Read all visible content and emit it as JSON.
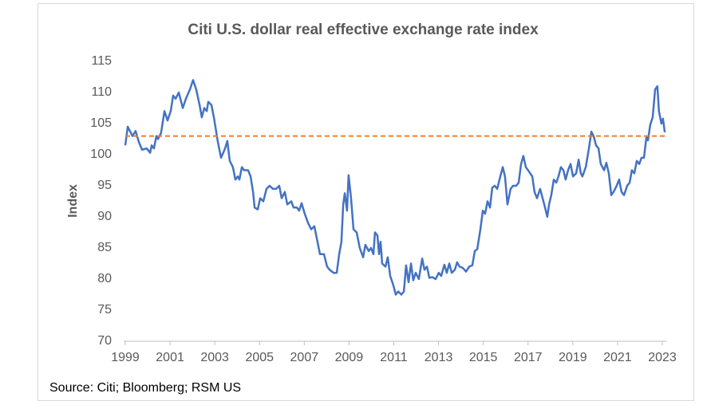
{
  "chart_data": {
    "type": "line",
    "title": "Citi U.S. dollar real effective exchange rate index",
    "y_label": "Index",
    "source": "Source: Citi; Bloomberg; RSM US",
    "color": "#4472c4",
    "reference_line": {
      "value": 103,
      "color": "#ed7d31"
    },
    "xlim": [
      1999,
      2023.2
    ],
    "xticks": [
      1999,
      2001,
      2003,
      2005,
      2007,
      2009,
      2011,
      2013,
      2015,
      2017,
      2019,
      2021,
      2023
    ],
    "ylim": [
      70,
      115
    ],
    "yticks": [
      70,
      75,
      80,
      85,
      90,
      95,
      100,
      105,
      110,
      115
    ],
    "grid": false,
    "x": [
      1999.0,
      1999.11,
      1999.32,
      1999.46,
      1999.61,
      1999.75,
      1999.96,
      2000.11,
      2000.18,
      2000.28,
      2000.39,
      2000.46,
      2000.6,
      2000.75,
      2000.89,
      2001.03,
      2001.14,
      2001.25,
      2001.39,
      2001.57,
      2001.71,
      2001.89,
      2002.03,
      2002.17,
      2002.32,
      2002.42,
      2002.53,
      2002.64,
      2002.71,
      2002.85,
      2002.96,
      2003.14,
      2003.28,
      2003.46,
      2003.56,
      2003.67,
      2003.81,
      2003.92,
      2004.03,
      2004.1,
      2004.21,
      2004.31,
      2004.49,
      2004.6,
      2004.71,
      2004.78,
      2004.92,
      2005.03,
      2005.17,
      2005.31,
      2005.45,
      2005.6,
      2005.74,
      2005.88,
      2005.99,
      2006.13,
      2006.24,
      2006.42,
      2006.52,
      2006.67,
      2006.77,
      2006.88,
      2007.02,
      2007.17,
      2007.31,
      2007.45,
      2007.59,
      2007.7,
      2007.88,
      2008.02,
      2008.13,
      2008.31,
      2008.45,
      2008.56,
      2008.66,
      2008.74,
      2008.81,
      2008.91,
      2008.98,
      2009.09,
      2009.2,
      2009.34,
      2009.48,
      2009.63,
      2009.73,
      2009.88,
      2009.98,
      2010.09,
      2010.16,
      2010.27,
      2010.34,
      2010.41,
      2010.48,
      2010.63,
      2010.73,
      2010.84,
      2010.98,
      2011.09,
      2011.2,
      2011.34,
      2011.45,
      2011.55,
      2011.66,
      2011.77,
      2011.87,
      2011.98,
      2012.12,
      2012.27,
      2012.37,
      2012.48,
      2012.59,
      2012.73,
      2012.87,
      2013.01,
      2013.12,
      2013.26,
      2013.37,
      2013.48,
      2013.59,
      2013.73,
      2013.83,
      2013.94,
      2014.08,
      2014.23,
      2014.37,
      2014.51,
      2014.62,
      2014.73,
      2014.87,
      2014.98,
      2015.08,
      2015.19,
      2015.3,
      2015.4,
      2015.51,
      2015.62,
      2015.76,
      2015.87,
      2015.97,
      2016.08,
      2016.22,
      2016.33,
      2016.47,
      2016.58,
      2016.69,
      2016.79,
      2016.9,
      2017.04,
      2017.19,
      2017.29,
      2017.4,
      2017.54,
      2017.65,
      2017.76,
      2017.86,
      2017.94,
      2018.04,
      2018.15,
      2018.26,
      2018.36,
      2018.47,
      2018.58,
      2018.68,
      2018.79,
      2018.9,
      2019.01,
      2019.15,
      2019.26,
      2019.36,
      2019.43,
      2019.58,
      2019.72,
      2019.83,
      2019.93,
      2020.04,
      2020.15,
      2020.25,
      2020.4,
      2020.5,
      2020.61,
      2020.72,
      2020.82,
      2020.96,
      2021.07,
      2021.18,
      2021.29,
      2021.43,
      2021.54,
      2021.64,
      2021.75,
      2021.86,
      2021.97,
      2022.07,
      2022.18,
      2022.29,
      2022.36,
      2022.46,
      2022.57,
      2022.68,
      2022.78,
      2022.85,
      2022.96,
      2023.03,
      2023.11
    ],
    "values": [
      101.5,
      104.5,
      103,
      103.8,
      102,
      100.8,
      101,
      100.3,
      101.5,
      101,
      103,
      102.5,
      103.5,
      107,
      105.5,
      107,
      109.5,
      109,
      110,
      107.5,
      109,
      110.5,
      112,
      110.5,
      108,
      106,
      107.5,
      107,
      108.5,
      108,
      106,
      102,
      99.5,
      101,
      102.2,
      99,
      98,
      96,
      96.5,
      96,
      98,
      97.5,
      97.5,
      96.5,
      94,
      91.5,
      91.2,
      93,
      92.5,
      94.5,
      95,
      94.5,
      94.5,
      95,
      93,
      94,
      92,
      92.5,
      91.5,
      91.5,
      91,
      92.2,
      90.5,
      89,
      88,
      88.5,
      86,
      84,
      84,
      82,
      81.5,
      81,
      81,
      84,
      86,
      92,
      93.8,
      91,
      96.7,
      93,
      88,
      87.5,
      85,
      83.5,
      85.5,
      84.5,
      85,
      84,
      87.5,
      87,
      84,
      86,
      82.5,
      82,
      83.5,
      80.5,
      79,
      77.5,
      78,
      77.5,
      78,
      82.2,
      79.5,
      82.5,
      79.8,
      81,
      80,
      83.3,
      81.5,
      82,
      80.2,
      80.3,
      80,
      81,
      80.5,
      82.3,
      81,
      82.5,
      81,
      81.5,
      82.7,
      82,
      81.8,
      81.2,
      82,
      82.2,
      84.5,
      84.8,
      88,
      91,
      90.5,
      92.5,
      91.5,
      94.7,
      95,
      94.5,
      96.5,
      98,
      96.5,
      92,
      94.5,
      95,
      95,
      95.5,
      98.5,
      99.8,
      98,
      97.3,
      96.5,
      94,
      93,
      94.5,
      93,
      91.5,
      90,
      92,
      93.5,
      96,
      95.5,
      96.5,
      98,
      97.5,
      96,
      97.5,
      98.5,
      96.5,
      97,
      99.2,
      97,
      96.5,
      98,
      101,
      103.7,
      103,
      101.5,
      101,
      98.5,
      97.5,
      98.7,
      97,
      93.5,
      94,
      95,
      96,
      94,
      93.5,
      95,
      95.5,
      97.5,
      97,
      99,
      98.5,
      99.5,
      99.5,
      102.8,
      102.3,
      104.8,
      106,
      110.5,
      111,
      107,
      105,
      105.8,
      103.6
    ]
  }
}
